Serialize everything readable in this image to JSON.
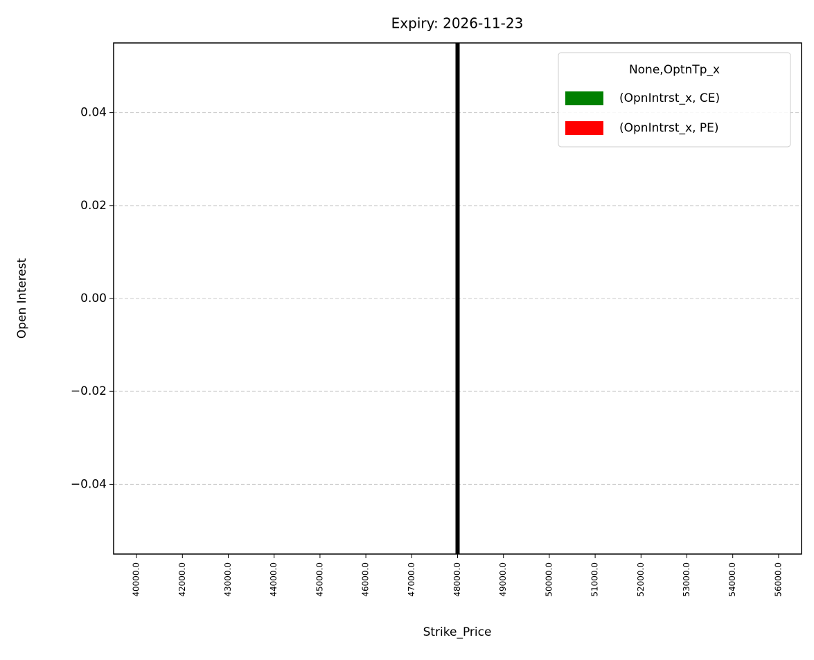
{
  "chart_data": {
    "type": "bar",
    "title": "Expiry: 2026-11-23",
    "x_label": "Strike_Price",
    "y_label": "Open Interest",
    "categories": [
      "40000.0",
      "42000.0",
      "43000.0",
      "44000.0",
      "45000.0",
      "46000.0",
      "47000.0",
      "48000.0",
      "49000.0",
      "50000.0",
      "51000.0",
      "52000.0",
      "53000.0",
      "54000.0",
      "56000.0"
    ],
    "series": [
      {
        "name": "(OpnIntrst_x, CE)",
        "color": "#008000",
        "values": [
          0,
          0,
          0,
          0,
          0,
          0,
          0,
          0,
          0,
          0,
          0,
          0,
          0,
          0,
          0
        ]
      },
      {
        "name": "(OpnIntrst_x, PE)",
        "color": "#ff0000",
        "values": [
          0,
          0,
          0,
          0,
          0,
          0,
          0,
          0,
          0,
          0,
          0,
          0,
          0,
          0,
          0
        ]
      }
    ],
    "legend_title": "None,OptnTp_x",
    "legend": "upper right",
    "vline_category": "48000.0",
    "ylim": [
      -0.055,
      0.055
    ],
    "yticks": [
      {
        "value": -0.04,
        "label": "−0.04"
      },
      {
        "value": -0.02,
        "label": "−0.02"
      },
      {
        "value": 0,
        "label": "0.00"
      },
      0.02,
      0.04
    ],
    "grid": true
  }
}
